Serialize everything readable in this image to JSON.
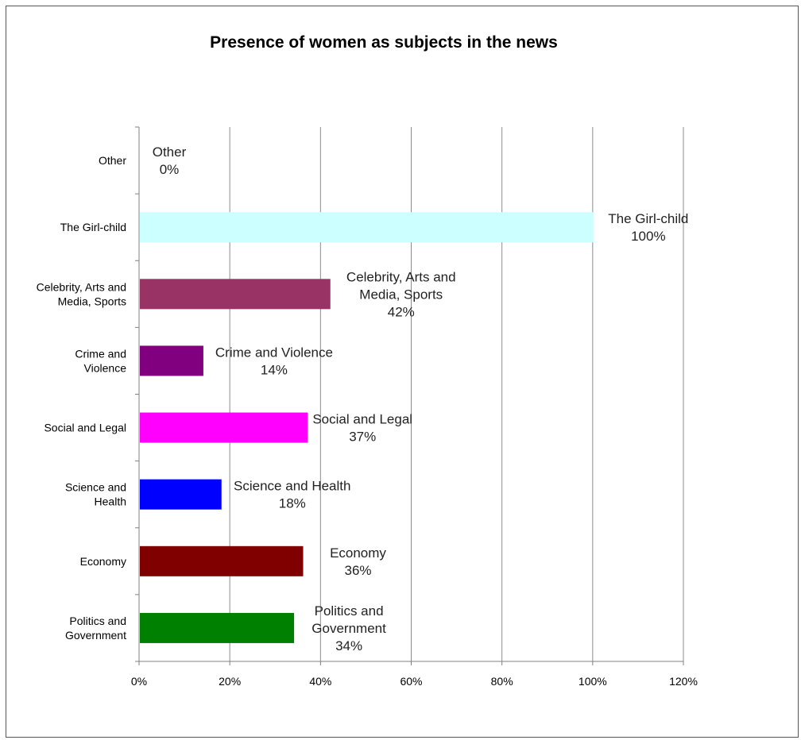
{
  "chart_data": {
    "type": "bar",
    "orientation": "horizontal",
    "title": "Presence of women as subjects in the news",
    "xlabel": "",
    "ylabel": "",
    "xlim": [
      0,
      120
    ],
    "ticks": [
      "0%",
      "20%",
      "40%",
      "60%",
      "80%",
      "100%",
      "120%"
    ],
    "grid": "vertical",
    "legend": "none",
    "categories": [
      {
        "label_lines": [
          "Other"
        ],
        "data_label_lines": [
          "Other",
          "0%"
        ],
        "value": 0,
        "color": "#ffffff"
      },
      {
        "label_lines": [
          "The Girl-child"
        ],
        "data_label_lines": [
          "The Girl-child",
          "100%"
        ],
        "value": 100,
        "color": "#ccffff"
      },
      {
        "label_lines": [
          "Celebrity, Arts and",
          "Media, Sports"
        ],
        "data_label_lines": [
          "Celebrity, Arts and",
          "Media, Sports",
          "42%"
        ],
        "value": 42,
        "color": "#993366"
      },
      {
        "label_lines": [
          "Crime and",
          "Violence"
        ],
        "data_label_lines": [
          "Crime and Violence",
          "14%"
        ],
        "value": 14,
        "color": "#800080"
      },
      {
        "label_lines": [
          "Social and Legal"
        ],
        "data_label_lines": [
          "Social and Legal",
          "37%"
        ],
        "value": 37,
        "color": "#ff00ff"
      },
      {
        "label_lines": [
          "Science and",
          "Health"
        ],
        "data_label_lines": [
          "Science and Health",
          "18%"
        ],
        "value": 18,
        "color": "#0000ff"
      },
      {
        "label_lines": [
          "Economy"
        ],
        "data_label_lines": [
          "Economy",
          "36%"
        ],
        "value": 36,
        "color": "#800000"
      },
      {
        "label_lines": [
          "Politics and",
          "Government"
        ],
        "data_label_lines": [
          "Politics and",
          "Government",
          "34%"
        ],
        "value": 34,
        "color": "#008000"
      }
    ]
  }
}
